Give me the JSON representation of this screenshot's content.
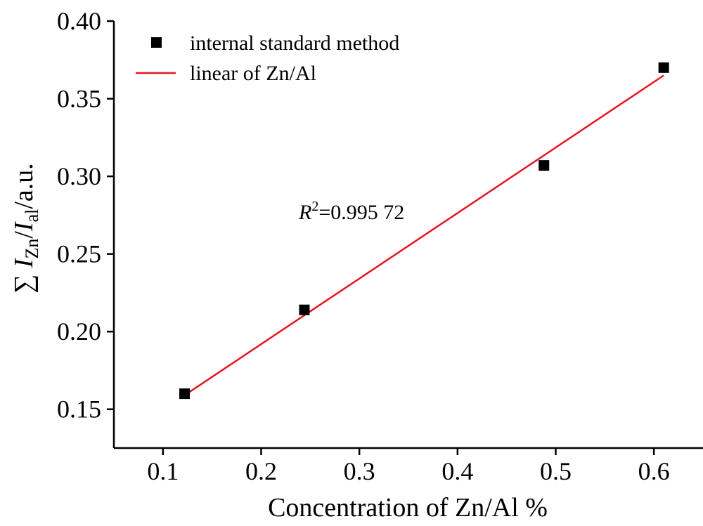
{
  "chart_data": {
    "type": "scatter",
    "xlabel": "Concentration of Zn/Al %",
    "ylabel": {
      "prefix": "∑ ",
      "var1": "I",
      "sub1": "Zn",
      "slash": "/",
      "var2": "I",
      "sub2": "al",
      "suffix": "/a.u."
    },
    "xlim": [
      0.05,
      0.65
    ],
    "ylim": [
      0.125,
      0.4
    ],
    "xticks": [
      0.1,
      0.2,
      0.3,
      0.4,
      0.5,
      0.6
    ],
    "xtick_labels": [
      "0.1",
      "0.2",
      "0.3",
      "0.4",
      "0.5",
      "0.6"
    ],
    "yticks": [
      0.15,
      0.2,
      0.25,
      0.3,
      0.35,
      0.4
    ],
    "ytick_labels": [
      "0.15",
      "0.20",
      "0.25",
      "0.30",
      "0.35",
      "0.40"
    ],
    "grid": false,
    "legend_position": "top-left",
    "series": [
      {
        "name": "internal standard method",
        "kind": "scatter",
        "marker": "square",
        "color": "#000000",
        "x": [
          0.122,
          0.244,
          0.488,
          0.61
        ],
        "y": [
          0.16,
          0.214,
          0.307,
          0.37
        ]
      },
      {
        "name": "linear of Zn/Al",
        "kind": "line",
        "color": "#e8141c",
        "x": [
          0.122,
          0.61
        ],
        "y": [
          0.159,
          0.365
        ]
      }
    ],
    "annotation": {
      "var": "R",
      "sup": "2",
      "text": "=0.995 72",
      "x": 0.3,
      "y": 0.283
    }
  }
}
